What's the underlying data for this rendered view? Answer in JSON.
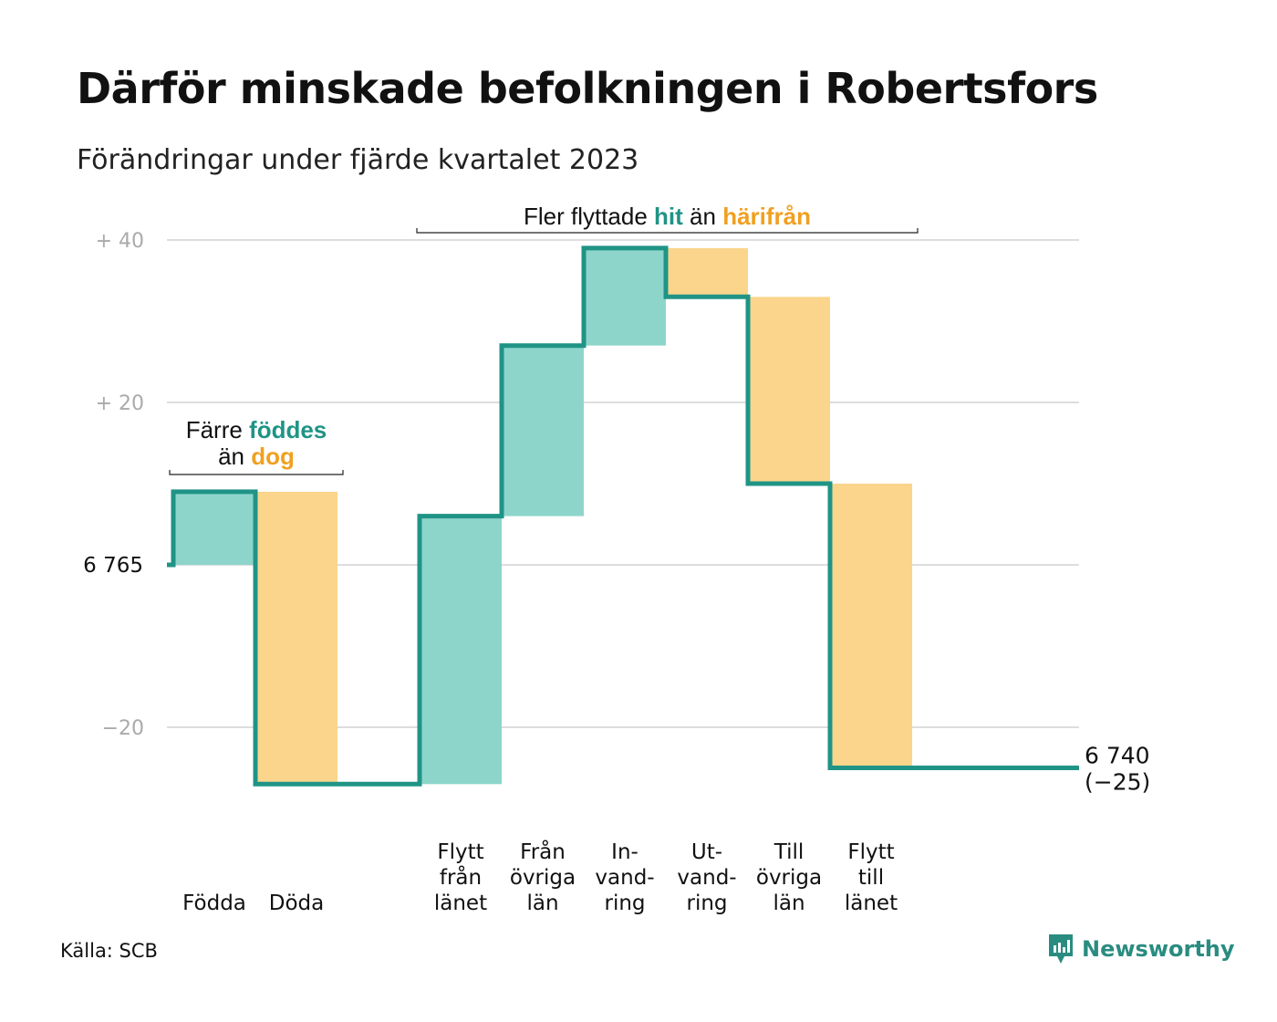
{
  "title": "Därför minskade befolkningen i Robertsfors",
  "subtitle": "Förändringar under fjärde kvartalet 2023",
  "source": "Källa: SCB",
  "brand": {
    "name": "Newsworthy",
    "icon": "newsworthy-logo-icon"
  },
  "colors": {
    "increase": "#8dd5cb",
    "decrease": "#fad58b",
    "line": "#1f9486",
    "hit": "#1f9486",
    "harifran": "#f0a020",
    "grid": "#dddddd",
    "tick": "#aaaaaa"
  },
  "annotations": {
    "births": {
      "prefix": "Färre",
      "highlight1": "föddes",
      "mid": "än",
      "highlight2": "dog"
    },
    "migration": {
      "prefix": "Fler flyttade",
      "highlight1": "hit",
      "mid": "än",
      "highlight2": "härifrån"
    }
  },
  "chart_data": {
    "type": "waterfall",
    "title": "Därför minskade befolkningen i Robertsfors",
    "subtitle": "Förändringar under fjärde kvartalet 2023",
    "start": {
      "label": "6  765",
      "value": 6765
    },
    "end": {
      "label": "6 740",
      "change_label": "(−25)",
      "value": 6740
    },
    "yticks": [
      {
        "value": 40,
        "label": "+  40"
      },
      {
        "value": 20,
        "label": "+  20"
      },
      {
        "value": 0,
        "label": ""
      },
      {
        "value": -20,
        "label": "−20"
      }
    ],
    "ylim": [
      -28,
      40
    ],
    "bars": [
      {
        "lines": [
          "Födda"
        ],
        "change": 9,
        "kind": "increase"
      },
      {
        "lines": [
          "Döda"
        ],
        "change": -36,
        "kind": "decrease"
      },
      {
        "lines": [
          ""
        ],
        "change": 0,
        "kind": "gap"
      },
      {
        "lines": [
          "Flytt",
          "från",
          "länet"
        ],
        "change": 33,
        "kind": "increase"
      },
      {
        "lines": [
          "Från",
          "övriga",
          "län"
        ],
        "change": 21,
        "kind": "increase"
      },
      {
        "lines": [
          "In-",
          "vand-",
          "ring"
        ],
        "change": 12,
        "kind": "increase"
      },
      {
        "lines": [
          "Ut-",
          "vand-",
          "ring"
        ],
        "change": -6,
        "kind": "decrease"
      },
      {
        "lines": [
          "Till",
          "övriga",
          "län"
        ],
        "change": -23,
        "kind": "decrease"
      },
      {
        "lines": [
          "Flytt",
          "till",
          "länet"
        ],
        "change": -35,
        "kind": "decrease"
      }
    ]
  }
}
